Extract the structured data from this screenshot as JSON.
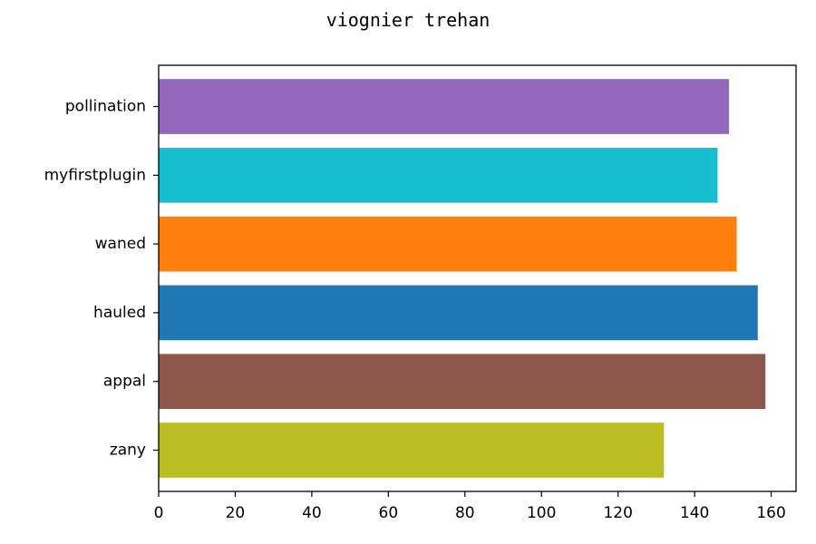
{
  "chart_data": {
    "type": "bar",
    "orientation": "horizontal",
    "title": "viognier trehan",
    "xlabel": "",
    "ylabel": "",
    "categories": [
      "zany",
      "appal",
      "hauled",
      "waned",
      "myfirstplugin",
      "pollination"
    ],
    "values": [
      132,
      158.5,
      156.5,
      151,
      146,
      149
    ],
    "colors": [
      "#bcbd22",
      "#8c564b",
      "#1f77b4",
      "#ff7f0e",
      "#17becf",
      "#9467bd"
    ],
    "xlim": [
      0,
      166.5
    ],
    "xticks": [
      0,
      20,
      40,
      60,
      80,
      100,
      120,
      140,
      160
    ],
    "grid": false,
    "legend": "none"
  }
}
